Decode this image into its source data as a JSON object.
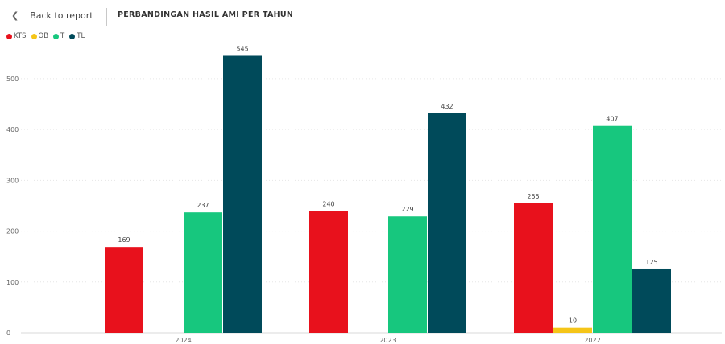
{
  "header": {
    "back_label": "Back to report",
    "title": "PERBANDINGAN HASIL AMI PER TAHUN"
  },
  "chart_data": {
    "type": "bar",
    "title": "PERBANDINGAN HASIL AMI PER TAHUN",
    "categories": [
      "2024",
      "2023",
      "2022"
    ],
    "series": [
      {
        "name": "KTS",
        "color": "#e8111c",
        "values": [
          169,
          240,
          255
        ]
      },
      {
        "name": "OB",
        "color": "#f5c518",
        "values": [
          0,
          0,
          10
        ]
      },
      {
        "name": "T",
        "color": "#17c77e",
        "values": [
          237,
          229,
          407
        ]
      },
      {
        "name": "TL",
        "color": "#004a5a",
        "values": [
          545,
          432,
          125
        ]
      }
    ],
    "ylim": [
      0,
      560
    ],
    "yticks": [
      0,
      100,
      200,
      300,
      400,
      500
    ],
    "grid": true,
    "legend_position": "top-left",
    "xlabel": "",
    "ylabel": ""
  }
}
